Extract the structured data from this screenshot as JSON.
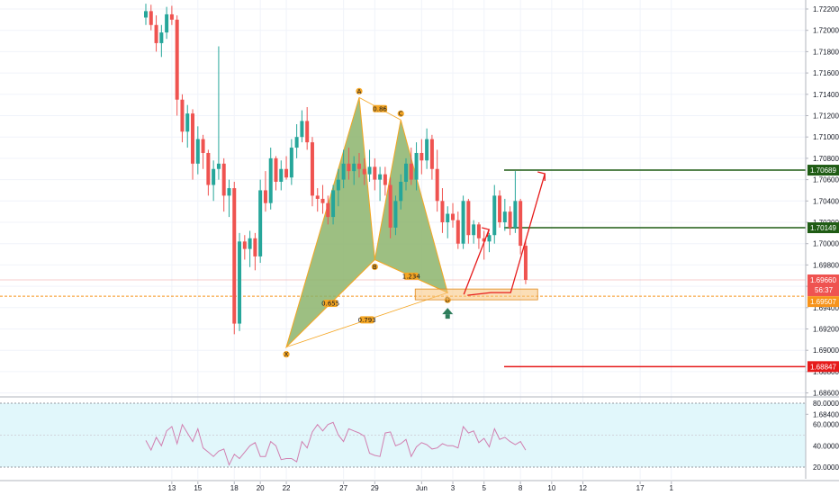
{
  "chart_data": {
    "type": "candlestick",
    "price_axis": {
      "ticks": [
        "1.72200",
        "1.72000",
        "1.71800",
        "1.71600",
        "1.71400",
        "1.71200",
        "1.71000",
        "1.70800",
        "1.70600",
        "1.70400",
        "1.70200",
        "1.70000",
        "1.69800",
        "1.69600",
        "1.69400",
        "1.69200",
        "1.69000",
        "1.68800",
        "1.68600",
        "1.68400"
      ],
      "ylim": [
        1.6828,
        1.7228
      ]
    },
    "rsi_axis": {
      "ticks": [
        "80.0000",
        "60.0000",
        "40.0000",
        "20.0000"
      ],
      "ylim": [
        15,
        85
      ]
    },
    "x_axis": {
      "ticks": [
        {
          "label": "13",
          "bar": 5
        },
        {
          "label": "15",
          "bar": 10
        },
        {
          "label": "18",
          "bar": 17
        },
        {
          "label": "20",
          "bar": 22
        },
        {
          "label": "22",
          "bar": 27
        },
        {
          "label": "27",
          "bar": 38
        },
        {
          "label": "29",
          "bar": 44
        },
        {
          "label": "Jun",
          "bar": 53
        },
        {
          "label": "3",
          "bar": 59
        },
        {
          "label": "5",
          "bar": 65
        },
        {
          "label": "8",
          "bar": 72
        },
        {
          "label": "10",
          "bar": 78
        },
        {
          "label": "12",
          "bar": 84
        },
        {
          "label": "17",
          "bar": 95
        },
        {
          "label": "1",
          "bar": 101
        }
      ]
    },
    "candles": [
      [
        1.7212,
        1.7225,
        1.7205,
        1.7218
      ],
      [
        1.7218,
        1.7224,
        1.72,
        1.7205
      ],
      [
        1.7205,
        1.7214,
        1.718,
        1.7188
      ],
      [
        1.7188,
        1.7205,
        1.7175,
        1.7198
      ],
      [
        1.7198,
        1.7222,
        1.7192,
        1.7215
      ],
      [
        1.7215,
        1.7223,
        1.7205,
        1.721
      ],
      [
        1.721,
        1.7214,
        1.712,
        1.7135
      ],
      [
        1.7135,
        1.714,
        1.7095,
        1.7105
      ],
      [
        1.7105,
        1.713,
        1.709,
        1.7122
      ],
      [
        1.7122,
        1.7126,
        1.706,
        1.7075
      ],
      [
        1.7075,
        1.711,
        1.7065,
        1.7098
      ],
      [
        1.7098,
        1.7102,
        1.707,
        1.7085
      ],
      [
        1.7085,
        1.7088,
        1.7045,
        1.7055
      ],
      [
        1.7055,
        1.7078,
        1.704,
        1.707
      ],
      [
        1.707,
        1.7185,
        1.706,
        1.7075
      ],
      [
        1.7075,
        1.708,
        1.703,
        1.7045
      ],
      [
        1.7045,
        1.706,
        1.7025,
        1.7052
      ],
      [
        1.7052,
        1.7058,
        1.6915,
        1.6925
      ],
      [
        1.6925,
        1.701,
        1.6918,
        1.7002
      ],
      [
        1.7002,
        1.7008,
        1.6985,
        1.6995
      ],
      [
        1.6995,
        1.7012,
        1.6978,
        1.7005
      ],
      [
        1.7005,
        1.701,
        1.6975,
        1.6988
      ],
      [
        1.6988,
        1.706,
        1.6982,
        1.705
      ],
      [
        1.705,
        1.7068,
        1.703,
        1.7038
      ],
      [
        1.7038,
        1.709,
        1.7032,
        1.708
      ],
      [
        1.708,
        1.7082,
        1.705,
        1.7058
      ],
      [
        1.7058,
        1.7078,
        1.705,
        1.707
      ],
      [
        1.707,
        1.7082,
        1.706,
        1.7062
      ],
      [
        1.7062,
        1.7098,
        1.7055,
        1.709
      ],
      [
        1.709,
        1.7112,
        1.708,
        1.71
      ],
      [
        1.71,
        1.7125,
        1.7095,
        1.7115
      ],
      [
        1.7115,
        1.7128,
        1.7088,
        1.7095
      ],
      [
        1.7095,
        1.71,
        1.7035,
        1.7045
      ],
      [
        1.7045,
        1.7052,
        1.703,
        1.7042
      ],
      [
        1.7042,
        1.7055,
        1.7028,
        1.7038
      ],
      [
        1.7038,
        1.7045,
        1.7018,
        1.7025
      ],
      [
        1.7025,
        1.7055,
        1.7018,
        1.705
      ],
      [
        1.705,
        1.707,
        1.7035,
        1.706
      ],
      [
        1.706,
        1.7088,
        1.7052,
        1.7075
      ],
      [
        1.7075,
        1.709,
        1.706,
        1.7068
      ],
      [
        1.7068,
        1.7082,
        1.7055,
        1.7075
      ],
      [
        1.7075,
        1.7085,
        1.7062,
        1.707
      ],
      [
        1.707,
        1.708,
        1.7055,
        1.7065
      ],
      [
        1.7065,
        1.7088,
        1.7058,
        1.7072
      ],
      [
        1.7072,
        1.708,
        1.705,
        1.706
      ],
      [
        1.706,
        1.7072,
        1.704,
        1.7065
      ],
      [
        1.7065,
        1.7072,
        1.7045,
        1.7055
      ],
      [
        1.7055,
        1.7062,
        1.7005,
        1.7015
      ],
      [
        1.7015,
        1.7045,
        1.7008,
        1.704
      ],
      [
        1.704,
        1.7065,
        1.7032,
        1.7058
      ],
      [
        1.7058,
        1.708,
        1.705,
        1.7075
      ],
      [
        1.7075,
        1.709,
        1.7055,
        1.706
      ],
      [
        1.706,
        1.7095,
        1.705,
        1.7085
      ],
      [
        1.7085,
        1.7098,
        1.7065,
        1.7078
      ],
      [
        1.7078,
        1.7108,
        1.707,
        1.7098
      ],
      [
        1.7098,
        1.7102,
        1.706,
        1.707
      ],
      [
        1.707,
        1.7088,
        1.703,
        1.704
      ],
      [
        1.704,
        1.7052,
        1.701,
        1.702
      ],
      [
        1.702,
        1.7035,
        1.7005,
        1.7028
      ],
      [
        1.7028,
        1.7038,
        1.7015,
        1.7022
      ],
      [
        1.7022,
        1.703,
        1.6995,
        1.7
      ],
      [
        1.7,
        1.7045,
        1.6995,
        1.704
      ],
      [
        1.704,
        1.7042,
        1.7,
        1.7008
      ],
      [
        1.7008,
        1.7022,
        1.7,
        1.7018
      ],
      [
        1.7018,
        1.702,
        1.6995,
        1.7005
      ],
      [
        1.7005,
        1.7012,
        1.6985,
        1.7002
      ],
      [
        1.7002,
        1.701,
        1.6992,
        1.7008
      ],
      [
        1.7008,
        1.7055,
        1.7,
        1.7045
      ],
      [
        1.7045,
        1.705,
        1.7015,
        1.702
      ],
      [
        1.702,
        1.7042,
        1.7012,
        1.703
      ],
      [
        1.703,
        1.7035,
        1.7008,
        1.7015
      ],
      [
        1.7015,
        1.7068,
        1.701,
        1.704
      ],
      [
        1.704,
        1.7042,
        1.699,
        1.6998
      ],
      [
        1.6998,
        1.7002,
        1.6962,
        1.6966
      ]
    ],
    "rsi": [
      45,
      36,
      48,
      40,
      54,
      58,
      42,
      60,
      52,
      44,
      56,
      38,
      34,
      30,
      35,
      37,
      22,
      32,
      28,
      34,
      40,
      43,
      30,
      30,
      44,
      40,
      27,
      28,
      28,
      25,
      44,
      38,
      53,
      60,
      54,
      60,
      62,
      50,
      44,
      56,
      54,
      52,
      49,
      33,
      31,
      30,
      52,
      53,
      40,
      42,
      46,
      30,
      39,
      43,
      41,
      37,
      38,
      42,
      40,
      40,
      38,
      58,
      52,
      54,
      43,
      47,
      39,
      56,
      46,
      48,
      44,
      41,
      44,
      36
    ],
    "harmonic": {
      "points": [
        {
          "label": "X",
          "price": 1.6903,
          "bar": 27
        },
        {
          "label": "A",
          "price": 1.7137,
          "bar": 41
        },
        {
          "label": "B",
          "price": 1.6985,
          "bar": 44
        },
        {
          "label": "C",
          "price": 1.7116,
          "bar": 49
        },
        {
          "label": "D",
          "price": 1.6954,
          "bar": 58
        }
      ],
      "ratios": [
        {
          "label": "0.655",
          "between": [
            "X",
            "B"
          ]
        },
        {
          "label": "0.86",
          "between": [
            "A",
            "C"
          ]
        },
        {
          "label": "1.234",
          "between": [
            "B",
            "D"
          ]
        },
        {
          "label": "0.793",
          "between": [
            "X",
            "D"
          ]
        }
      ]
    },
    "levels": [
      {
        "price": 1.70689,
        "label": "1.70689",
        "color": "#1f5c14",
        "kind": "target"
      },
      {
        "price": 1.70149,
        "label": "1.70149",
        "color": "#1f5c14",
        "kind": "target"
      },
      {
        "price": 1.68847,
        "label": "1.68847",
        "color": "#e61a1a",
        "kind": "stop"
      },
      {
        "price": 1.69507,
        "label": "1.69507",
        "color": "#f7931a",
        "kind": "entry"
      }
    ],
    "current_price": {
      "label": "1.69660",
      "countdown": "56:37",
      "color": "#ef5350"
    },
    "colors": {
      "up": "#26a69a",
      "down": "#ef5350",
      "pattern_fill": "#8cb46c",
      "pattern_stroke": "#f5a623",
      "rsi_line": "#d17fb0",
      "rsi_band": "#e1f7fb"
    }
  }
}
